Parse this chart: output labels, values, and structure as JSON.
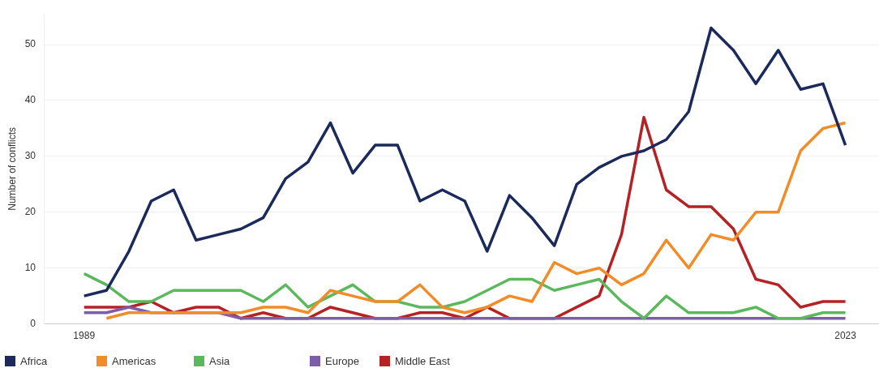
{
  "chart_data": {
    "type": "line",
    "ylabel": "Number of conflicts",
    "x": [
      1989,
      1990,
      1991,
      1992,
      1993,
      1994,
      1995,
      1996,
      1997,
      1998,
      1999,
      2000,
      2001,
      2002,
      2003,
      2004,
      2005,
      2006,
      2007,
      2008,
      2009,
      2010,
      2011,
      2012,
      2013,
      2014,
      2015,
      2016,
      2017,
      2018,
      2019,
      2020,
      2021,
      2022,
      2023
    ],
    "series": [
      {
        "name": "Africa",
        "color": "#1b2a5a",
        "values": [
          5,
          6,
          13,
          22,
          24,
          15,
          16,
          17,
          19,
          26,
          29,
          36,
          27,
          32,
          32,
          22,
          24,
          22,
          13,
          23,
          19,
          14,
          25,
          28,
          30,
          31,
          33,
          38,
          53,
          49,
          43,
          49,
          42,
          43,
          32
        ]
      },
      {
        "name": "Americas",
        "color": "#f28c28",
        "values": [
          null,
          1,
          2,
          2,
          2,
          2,
          2,
          2,
          3,
          3,
          2,
          6,
          5,
          4,
          4,
          7,
          3,
          2,
          3,
          5,
          4,
          11,
          9,
          10,
          7,
          9,
          15,
          10,
          16,
          15,
          20,
          20,
          31,
          35,
          36
        ]
      },
      {
        "name": "Asia",
        "color": "#5cb85c",
        "values": [
          9,
          7,
          4,
          4,
          6,
          6,
          6,
          6,
          4,
          7,
          3,
          5,
          7,
          4,
          4,
          3,
          3,
          4,
          6,
          8,
          8,
          6,
          7,
          8,
          4,
          1,
          5,
          2,
          2,
          2,
          3,
          1,
          1,
          2,
          2
        ]
      },
      {
        "name": "Europe",
        "color": "#7b5ea7",
        "values": [
          2,
          2,
          3,
          2,
          2,
          2,
          2,
          1,
          1,
          1,
          1,
          1,
          1,
          1,
          1,
          1,
          1,
          1,
          1,
          1,
          1,
          1,
          1,
          1,
          1,
          1,
          1,
          1,
          1,
          1,
          1,
          1,
          1,
          1,
          1
        ]
      },
      {
        "name": "Middle East",
        "color": "#b52226",
        "values": [
          3,
          3,
          3,
          4,
          2,
          3,
          3,
          1,
          2,
          1,
          1,
          3,
          2,
          1,
          1,
          2,
          2,
          1,
          3,
          1,
          1,
          1,
          3,
          5,
          16,
          37,
          24,
          21,
          21,
          17,
          8,
          7,
          3,
          4,
          4
        ]
      }
    ],
    "xlim": [
      1987.2,
      2024.5
    ],
    "xticks": [
      1989,
      2023
    ],
    "ylim": [
      0,
      55.5
    ],
    "yticks": [
      0,
      10,
      20,
      30,
      40,
      50
    ],
    "grid": "y",
    "legend": "bottom left",
    "marker": "none"
  }
}
